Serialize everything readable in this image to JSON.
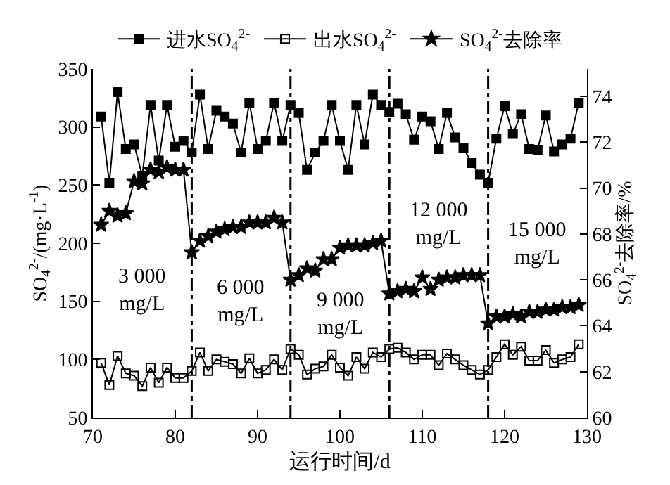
{
  "chart_data": {
    "type": "line",
    "xlabel": "运行时间/d",
    "ylabel": "SO$_{4}$$^{2-}$/(mg·L$^{-1}$)",
    "y2label": "SO$_{4}$$^{2-}$去除率/%",
    "x": [
      71,
      72,
      73,
      74,
      75,
      76,
      77,
      78,
      79,
      80,
      81,
      82,
      83,
      84,
      85,
      86,
      87,
      88,
      89,
      90,
      91,
      92,
      93,
      94,
      95,
      96,
      97,
      98,
      99,
      100,
      101,
      102,
      103,
      104,
      105,
      106,
      107,
      108,
      109,
      110,
      111,
      112,
      113,
      114,
      115,
      116,
      117,
      118,
      119,
      120,
      121,
      122,
      123,
      124,
      125,
      126,
      127,
      128,
      129
    ],
    "series": [
      {
        "name": "进水SO$_{4}$$^{2-}$",
        "color": "#000000",
        "marker": "square",
        "values": [
          309,
          252,
          330,
          281,
          285,
          258,
          319,
          271,
          319,
          283,
          288,
          278,
          328,
          281,
          314,
          309,
          303,
          278,
          321,
          281,
          288,
          321,
          288,
          319,
          312,
          263,
          278,
          288,
          319,
          288,
          263,
          319,
          285,
          328,
          319,
          313,
          320,
          311,
          289,
          309,
          305,
          281,
          312,
          291,
          282,
          269,
          259,
          252,
          290,
          318,
          294,
          311,
          281,
          280,
          310,
          279,
          285,
          290,
          321
        ]
      },
      {
        "name": "出水SO$_{4}$$^{2-}$",
        "color": "#000000",
        "marker": "square-open",
        "values": [
          97,
          78,
          103,
          88,
          86,
          77,
          93,
          80,
          93,
          84,
          84,
          90,
          106,
          90,
          100,
          98,
          96,
          88,
          101,
          88,
          91,
          100,
          91,
          109,
          104,
          87,
          92,
          94,
          104,
          93,
          86,
          102,
          92,
          106,
          102,
          109,
          110,
          106,
          100,
          104,
          104,
          95,
          105,
          100,
          95,
          91,
          87,
          91,
          102,
          113,
          104,
          111,
          99,
          99,
          108,
          97,
          100,
          102,
          113
        ]
      },
      {
        "name": "SO$_{4}$$^{2-}$去除率",
        "color": "#000000",
        "marker": "star",
        "axis": "y2",
        "values": [
          68.4,
          69.0,
          68.8,
          68.9,
          70.3,
          70.2,
          70.8,
          70.7,
          70.9,
          70.8,
          70.8,
          67.2,
          67.7,
          67.9,
          68.1,
          68.2,
          68.3,
          68.3,
          68.5,
          68.5,
          68.5,
          68.7,
          68.5,
          66.0,
          66.2,
          66.5,
          66.4,
          66.9,
          66.9,
          67.4,
          67.5,
          67.5,
          67.5,
          67.6,
          67.7,
          65.4,
          65.5,
          65.6,
          65.5,
          66.1,
          65.6,
          66.0,
          66.1,
          66.1,
          66.2,
          66.2,
          66.2,
          64.1,
          64.4,
          64.4,
          64.5,
          64.4,
          64.6,
          64.6,
          64.7,
          64.7,
          64.8,
          64.8,
          64.9
        ]
      }
    ],
    "xlim": [
      70,
      130
    ],
    "xticks": [
      70,
      80,
      90,
      100,
      110,
      120,
      130
    ],
    "ylim": [
      50,
      350
    ],
    "yticks": [
      50,
      100,
      150,
      200,
      250,
      300,
      350
    ],
    "y2lim": [
      60,
      75.2
    ],
    "y2ticks": [
      60,
      62,
      64,
      66,
      68,
      70,
      72,
      74
    ],
    "ref_lines": [
      {
        "axis": "x",
        "value": 82,
        "line_style": "dashed"
      },
      {
        "axis": "x",
        "value": 94,
        "line_style": "dashed"
      },
      {
        "axis": "x",
        "value": 106,
        "line_style": "dashed"
      },
      {
        "axis": "x",
        "value": 118,
        "line_style": "dashed"
      }
    ],
    "annotations": [
      "3 000\nmg/L",
      "6 000\nmg/L",
      "9 000\nmg/L",
      "12 000\nmg/L",
      "15 000\nmg/L"
    ],
    "legend": "top",
    "grid": false,
    "line_style": "solid"
  }
}
